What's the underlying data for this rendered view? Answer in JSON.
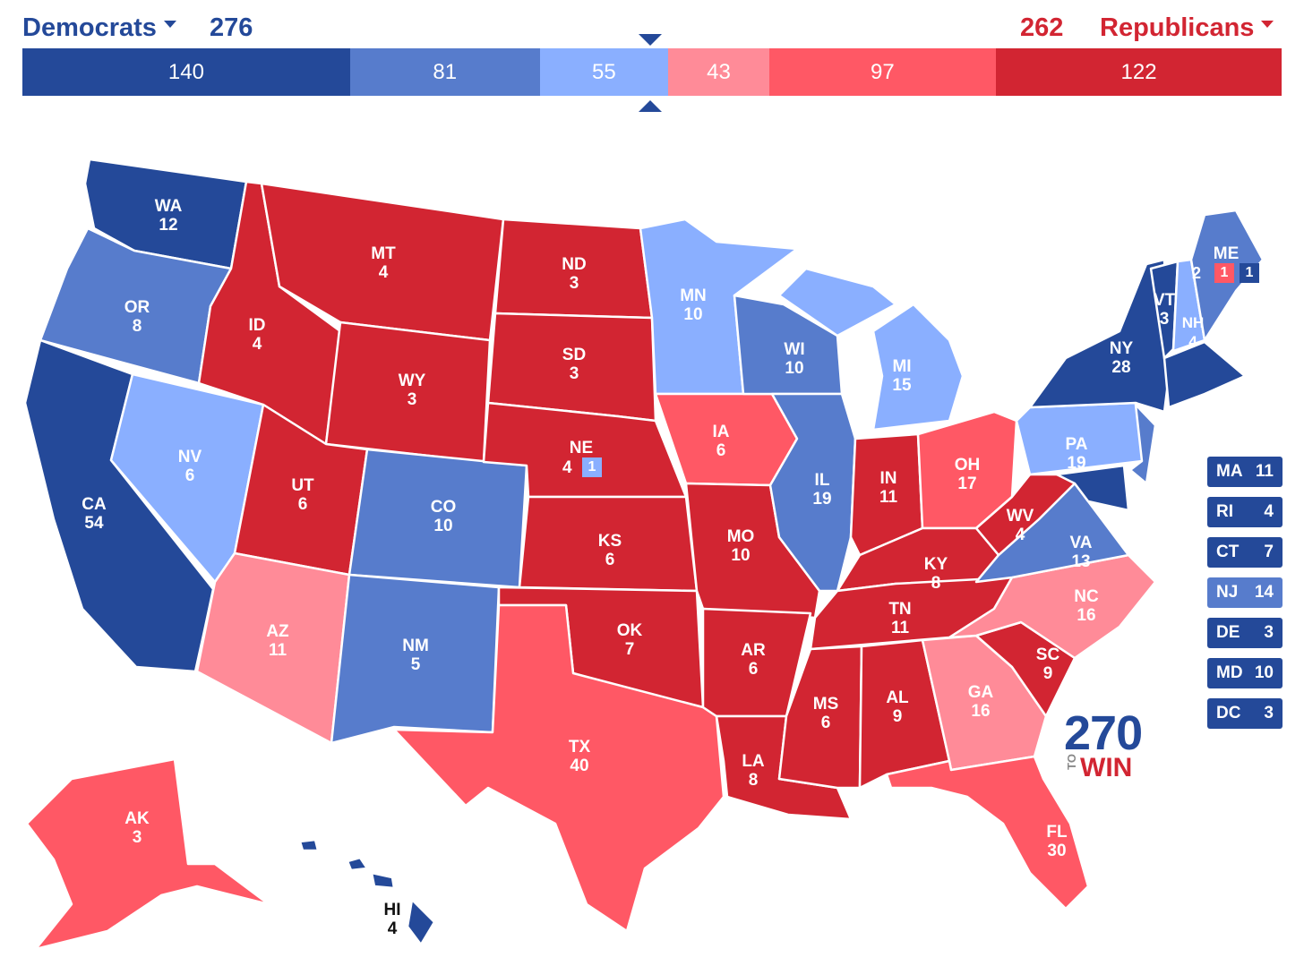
{
  "header": {
    "dem_label": "Democrats",
    "dem_total": "276",
    "rep_total": "262",
    "rep_label": "Republicans"
  },
  "colors": {
    "safe_d": "#244999",
    "likely_d": "#577ccc",
    "lean_d": "#8aafff",
    "lean_r": "#ff8b98",
    "likely_r": "#ff5865",
    "safe_r": "#d22532"
  },
  "tally": [
    {
      "label": "140",
      "value": 140,
      "rating": "safe_d"
    },
    {
      "label": "81",
      "value": 81,
      "rating": "likely_d"
    },
    {
      "label": "55",
      "value": 55,
      "rating": "lean_d"
    },
    {
      "label": "43",
      "value": 43,
      "rating": "lean_r"
    },
    {
      "label": "97",
      "value": 97,
      "rating": "likely_r"
    },
    {
      "label": "122",
      "value": 122,
      "rating": "safe_r"
    }
  ],
  "states": {
    "WA": {
      "abbr": "WA",
      "ev": "12",
      "rating": "safe_d"
    },
    "OR": {
      "abbr": "OR",
      "ev": "8",
      "rating": "likely_d"
    },
    "CA": {
      "abbr": "CA",
      "ev": "54",
      "rating": "safe_d"
    },
    "NV": {
      "abbr": "NV",
      "ev": "6",
      "rating": "lean_d"
    },
    "ID": {
      "abbr": "ID",
      "ev": "4",
      "rating": "safe_r"
    },
    "MT": {
      "abbr": "MT",
      "ev": "4",
      "rating": "safe_r"
    },
    "WY": {
      "abbr": "WY",
      "ev": "3",
      "rating": "safe_r"
    },
    "UT": {
      "abbr": "UT",
      "ev": "6",
      "rating": "safe_r"
    },
    "AZ": {
      "abbr": "AZ",
      "ev": "11",
      "rating": "lean_r"
    },
    "CO": {
      "abbr": "CO",
      "ev": "10",
      "rating": "likely_d"
    },
    "NM": {
      "abbr": "NM",
      "ev": "5",
      "rating": "likely_d"
    },
    "ND": {
      "abbr": "ND",
      "ev": "3",
      "rating": "safe_r"
    },
    "SD": {
      "abbr": "SD",
      "ev": "3",
      "rating": "safe_r"
    },
    "NE": {
      "abbr": "NE",
      "ev": "4",
      "rating": "safe_r"
    },
    "KS": {
      "abbr": "KS",
      "ev": "6",
      "rating": "safe_r"
    },
    "OK": {
      "abbr": "OK",
      "ev": "7",
      "rating": "safe_r"
    },
    "TX": {
      "abbr": "TX",
      "ev": "40",
      "rating": "likely_r"
    },
    "MN": {
      "abbr": "MN",
      "ev": "10",
      "rating": "lean_d"
    },
    "IA": {
      "abbr": "IA",
      "ev": "6",
      "rating": "likely_r"
    },
    "MO": {
      "abbr": "MO",
      "ev": "10",
      "rating": "safe_r"
    },
    "AR": {
      "abbr": "AR",
      "ev": "6",
      "rating": "safe_r"
    },
    "LA": {
      "abbr": "LA",
      "ev": "8",
      "rating": "safe_r"
    },
    "WI": {
      "abbr": "WI",
      "ev": "10",
      "rating": "likely_d"
    },
    "IL": {
      "abbr": "IL",
      "ev": "19",
      "rating": "likely_d"
    },
    "MI": {
      "abbr": "MI",
      "ev": "15",
      "rating": "lean_d"
    },
    "IN": {
      "abbr": "IN",
      "ev": "11",
      "rating": "safe_r"
    },
    "OH": {
      "abbr": "OH",
      "ev": "17",
      "rating": "likely_r"
    },
    "KY": {
      "abbr": "KY",
      "ev": "8",
      "rating": "safe_r"
    },
    "TN": {
      "abbr": "TN",
      "ev": "11",
      "rating": "safe_r"
    },
    "MS": {
      "abbr": "MS",
      "ev": "6",
      "rating": "safe_r"
    },
    "AL": {
      "abbr": "AL",
      "ev": "9",
      "rating": "safe_r"
    },
    "GA": {
      "abbr": "GA",
      "ev": "16",
      "rating": "lean_r"
    },
    "FL": {
      "abbr": "FL",
      "ev": "30",
      "rating": "likely_r"
    },
    "SC": {
      "abbr": "SC",
      "ev": "9",
      "rating": "safe_r"
    },
    "NC": {
      "abbr": "NC",
      "ev": "16",
      "rating": "lean_r"
    },
    "VA": {
      "abbr": "VA",
      "ev": "13",
      "rating": "likely_d"
    },
    "WV": {
      "abbr": "WV",
      "ev": "4",
      "rating": "safe_r"
    },
    "PA": {
      "abbr": "PA",
      "ev": "19",
      "rating": "lean_d"
    },
    "NY": {
      "abbr": "NY",
      "ev": "28",
      "rating": "safe_d"
    },
    "VT": {
      "abbr": "VT",
      "ev": "3",
      "rating": "safe_d"
    },
    "NH": {
      "abbr": "NH",
      "ev": "4",
      "rating": "lean_d"
    },
    "ME": {
      "abbr": "ME",
      "ev": "",
      "rating": "likely_d"
    },
    "AK": {
      "abbr": "AK",
      "ev": "3",
      "rating": "likely_r"
    },
    "HI": {
      "abbr": "HI",
      "ev": "4",
      "rating": "safe_d"
    }
  },
  "me_districts": {
    "statewide": "2",
    "d1": "1",
    "d2": "1"
  },
  "ne_district": {
    "label": "1",
    "rating": "lean_d"
  },
  "side_states": [
    {
      "abbr": "MA",
      "ev": "11",
      "rating": "safe_d"
    },
    {
      "abbr": "RI",
      "ev": "4",
      "rating": "safe_d"
    },
    {
      "abbr": "CT",
      "ev": "7",
      "rating": "safe_d"
    },
    {
      "abbr": "NJ",
      "ev": "14",
      "rating": "likely_d"
    },
    {
      "abbr": "DE",
      "ev": "3",
      "rating": "safe_d"
    },
    {
      "abbr": "MD",
      "ev": "10",
      "rating": "safe_d"
    },
    {
      "abbr": "DC",
      "ev": "3",
      "rating": "safe_d"
    }
  ],
  "logo": {
    "number": "270",
    "to": "TO",
    "win": "WIN"
  }
}
